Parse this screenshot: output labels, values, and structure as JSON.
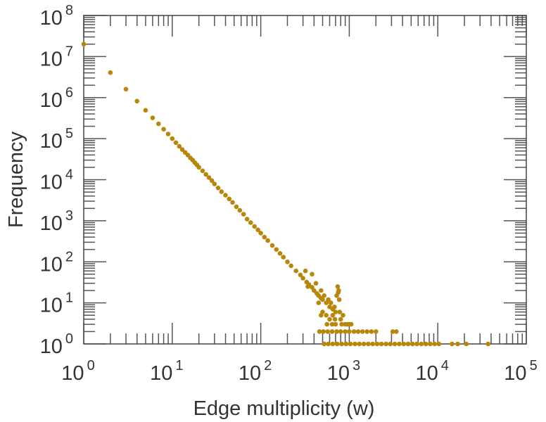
{
  "chart_data": {
    "type": "scatter",
    "title": "",
    "xlabel": "Edge multiplicity (w)",
    "ylabel": "Frequency",
    "xscale": "log",
    "yscale": "log",
    "xlim": [
      1,
      100000
    ],
    "ylim": [
      1,
      100000000
    ],
    "x_ticks": [
      {
        "base": "10",
        "exp": "0"
      },
      {
        "base": "10",
        "exp": "1"
      },
      {
        "base": "10",
        "exp": "2"
      },
      {
        "base": "10",
        "exp": "3"
      },
      {
        "base": "10",
        "exp": "4"
      },
      {
        "base": "10",
        "exp": "5"
      }
    ],
    "y_ticks": [
      {
        "base": "10",
        "exp": "0"
      },
      {
        "base": "10",
        "exp": "1"
      },
      {
        "base": "10",
        "exp": "2"
      },
      {
        "base": "10",
        "exp": "3"
      },
      {
        "base": "10",
        "exp": "4"
      },
      {
        "base": "10",
        "exp": "5"
      },
      {
        "base": "10",
        "exp": "6"
      },
      {
        "base": "10",
        "exp": "7"
      },
      {
        "base": "10",
        "exp": "8"
      }
    ],
    "grid": false,
    "color": "#b8860b",
    "points": [
      [
        1,
        20000000
      ],
      [
        2,
        4060000
      ],
      [
        3,
        1600000
      ],
      [
        4,
        820000
      ],
      [
        5,
        490000
      ],
      [
        6,
        320000
      ],
      [
        7,
        230000
      ],
      [
        8,
        170000
      ],
      [
        9,
        130000
      ],
      [
        10,
        100000
      ],
      [
        11,
        80000
      ],
      [
        12,
        65000
      ],
      [
        13,
        54000
      ],
      [
        14,
        46000
      ],
      [
        15,
        40000
      ],
      [
        16,
        34000
      ],
      [
        17,
        30000
      ],
      [
        18,
        26000
      ],
      [
        19,
        23000
      ],
      [
        20,
        20000
      ],
      [
        22,
        16500
      ],
      [
        24,
        13500
      ],
      [
        26,
        11300
      ],
      [
        28,
        9500
      ],
      [
        30,
        7900
      ],
      [
        33,
        6300
      ],
      [
        36,
        5100
      ],
      [
        40,
        4200
      ],
      [
        44,
        3400
      ],
      [
        48,
        2800
      ],
      [
        53,
        2200
      ],
      [
        58,
        1800
      ],
      [
        64,
        1440
      ],
      [
        70,
        1100
      ],
      [
        77,
        900
      ],
      [
        85,
        730
      ],
      [
        93,
        600
      ],
      [
        100,
        500
      ],
      [
        110,
        400
      ],
      [
        120,
        330
      ],
      [
        135,
        250
      ],
      [
        150,
        200
      ],
      [
        165,
        160
      ],
      [
        180,
        130
      ],
      [
        200,
        100
      ],
      [
        220,
        80
      ],
      [
        250,
        60
      ],
      [
        280,
        48
      ],
      [
        300,
        40
      ],
      [
        330,
        32
      ],
      [
        350,
        28
      ],
      [
        380,
        24
      ],
      [
        400,
        20
      ],
      [
        430,
        17
      ],
      [
        450,
        15
      ],
      [
        480,
        13
      ],
      [
        500,
        12
      ],
      [
        550,
        10
      ],
      [
        600,
        8
      ],
      [
        650,
        7
      ],
      [
        700,
        6
      ],
      [
        320,
        60
      ],
      [
        340,
        25
      ],
      [
        380,
        50
      ],
      [
        420,
        30
      ],
      [
        450,
        10
      ],
      [
        480,
        20
      ],
      [
        500,
        6
      ],
      [
        520,
        15
      ],
      [
        550,
        5
      ],
      [
        580,
        12
      ],
      [
        600,
        4
      ],
      [
        620,
        10
      ],
      [
        650,
        5
      ],
      [
        680,
        8
      ],
      [
        700,
        3
      ],
      [
        720,
        15
      ],
      [
        740,
        25
      ],
      [
        750,
        18
      ],
      [
        760,
        20
      ],
      [
        770,
        12
      ],
      [
        780,
        6
      ],
      [
        800,
        4
      ],
      [
        820,
        3
      ],
      [
        850,
        5
      ],
      [
        900,
        3
      ],
      [
        950,
        3
      ],
      [
        1000,
        3
      ],
      [
        1050,
        3
      ],
      [
        480,
        5
      ],
      [
        560,
        3
      ],
      [
        640,
        3
      ],
      [
        690,
        4
      ],
      [
        460,
        2
      ],
      [
        510,
        2
      ],
      [
        570,
        2
      ],
      [
        640,
        2
      ],
      [
        720,
        2
      ],
      [
        800,
        2
      ],
      [
        900,
        2
      ],
      [
        1000,
        2
      ],
      [
        1130,
        2
      ],
      [
        1260,
        2
      ],
      [
        1410,
        2
      ],
      [
        1590,
        2
      ],
      [
        1780,
        2
      ],
      [
        2000,
        2
      ],
      [
        3100,
        2
      ],
      [
        3400,
        2
      ],
      [
        520,
        1
      ],
      [
        580,
        1
      ],
      [
        650,
        1
      ],
      [
        730,
        1
      ],
      [
        820,
        1
      ],
      [
        920,
        1
      ],
      [
        1030,
        1
      ],
      [
        1160,
        1
      ],
      [
        1300,
        1
      ],
      [
        1460,
        1
      ],
      [
        1640,
        1
      ],
      [
        1840,
        1
      ],
      [
        2060,
        1
      ],
      [
        2310,
        1
      ],
      [
        2600,
        1
      ],
      [
        2910,
        1
      ],
      [
        3270,
        1
      ],
      [
        3670,
        1
      ],
      [
        4120,
        1
      ],
      [
        4620,
        1
      ],
      [
        5180,
        1
      ],
      [
        5810,
        1
      ],
      [
        6520,
        1
      ],
      [
        7320,
        1
      ],
      [
        8210,
        1
      ],
      [
        9210,
        1
      ],
      [
        10300,
        1
      ],
      [
        14500,
        1
      ],
      [
        16800,
        1
      ],
      [
        21000,
        1
      ],
      [
        37000,
        1
      ]
    ]
  }
}
